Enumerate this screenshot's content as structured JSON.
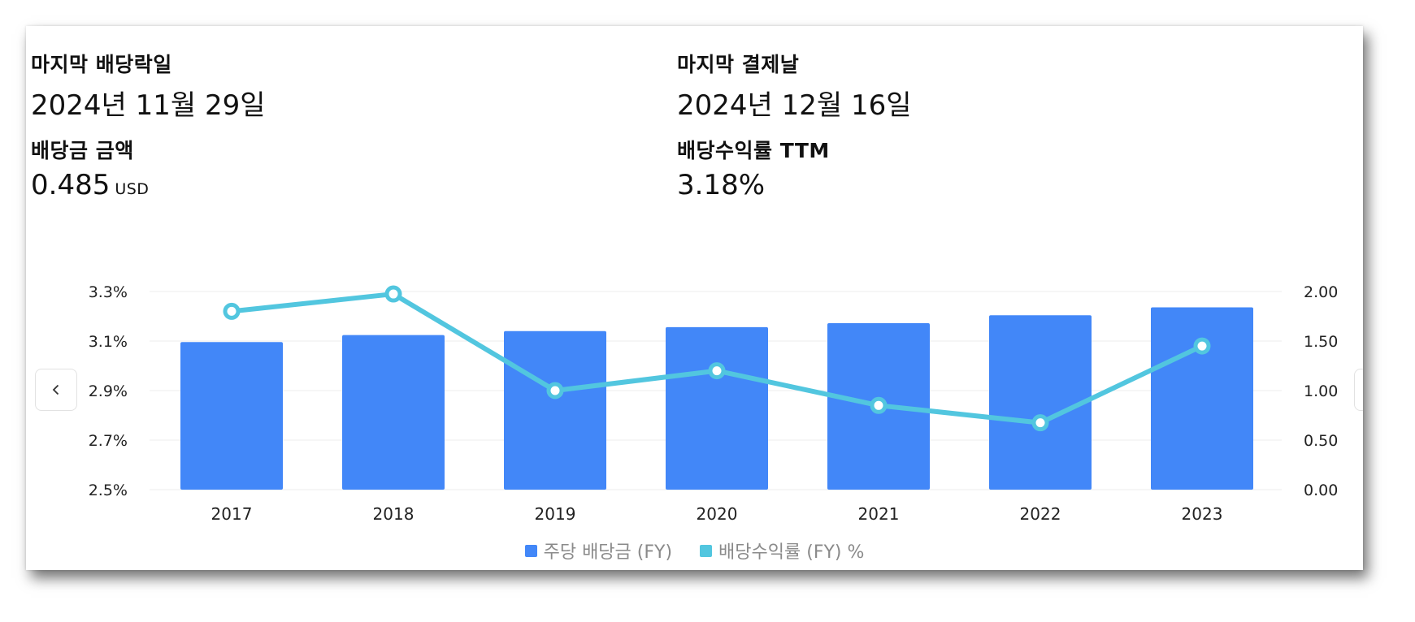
{
  "stats": {
    "ex_date": {
      "label": "마지막 배당락일",
      "value": "2024년 11월 29일"
    },
    "pay_date": {
      "label": "마지막 결제날",
      "value": "2024년 12월 16일"
    },
    "amount": {
      "label": "배당금 금액",
      "value": "0.485",
      "unit": "USD"
    },
    "yield": {
      "label": "배당수익률 TTM",
      "value": "3.18%"
    }
  },
  "colors": {
    "bar": "#4287f8",
    "line": "#52c6df"
  },
  "nav": {
    "prev_icon": "chevron-left-icon",
    "next_icon": "chevron-right-icon"
  },
  "chart_data": {
    "type": "bar",
    "categories": [
      "2017",
      "2018",
      "2019",
      "2020",
      "2021",
      "2022",
      "2023"
    ],
    "series": [
      {
        "name": "주당 배당금 (FY)",
        "type": "bar",
        "axis": "right",
        "values": [
          1.49,
          1.56,
          1.6,
          1.64,
          1.68,
          1.76,
          1.84
        ]
      },
      {
        "name": "배당수익률 (FY) %",
        "type": "line",
        "axis": "left",
        "values": [
          3.22,
          3.29,
          2.9,
          2.98,
          2.84,
          2.77,
          3.08
        ]
      }
    ],
    "y_left": {
      "ticks": [
        "3.3%",
        "3.1%",
        "2.9%",
        "2.7%",
        "2.5%"
      ],
      "ylim": [
        2.5,
        3.3
      ]
    },
    "y_right": {
      "ticks": [
        "2.00",
        "1.50",
        "1.00",
        "0.50",
        "0.00"
      ],
      "ylim": [
        0,
        2
      ]
    },
    "grid": true,
    "legend_position": "bottom-center"
  }
}
